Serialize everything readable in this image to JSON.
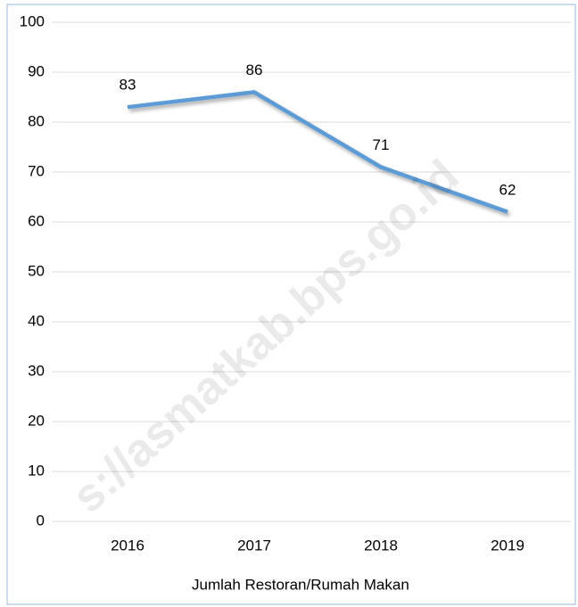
{
  "chart_data": {
    "type": "line",
    "categories": [
      "2016",
      "2017",
      "2018",
      "2019"
    ],
    "series": [
      {
        "name": "Jumlah Restoran/Rumah Makan",
        "color": "#5b9bd5",
        "values": [
          83,
          86,
          71,
          62
        ]
      }
    ],
    "ylim": [
      0,
      100
    ],
    "yticks": [
      0,
      10,
      20,
      30,
      40,
      50,
      60,
      70,
      80,
      90,
      100
    ],
    "grid": true,
    "legend": "bottom",
    "watermark": "s://asmatkab.bps.go.id"
  }
}
